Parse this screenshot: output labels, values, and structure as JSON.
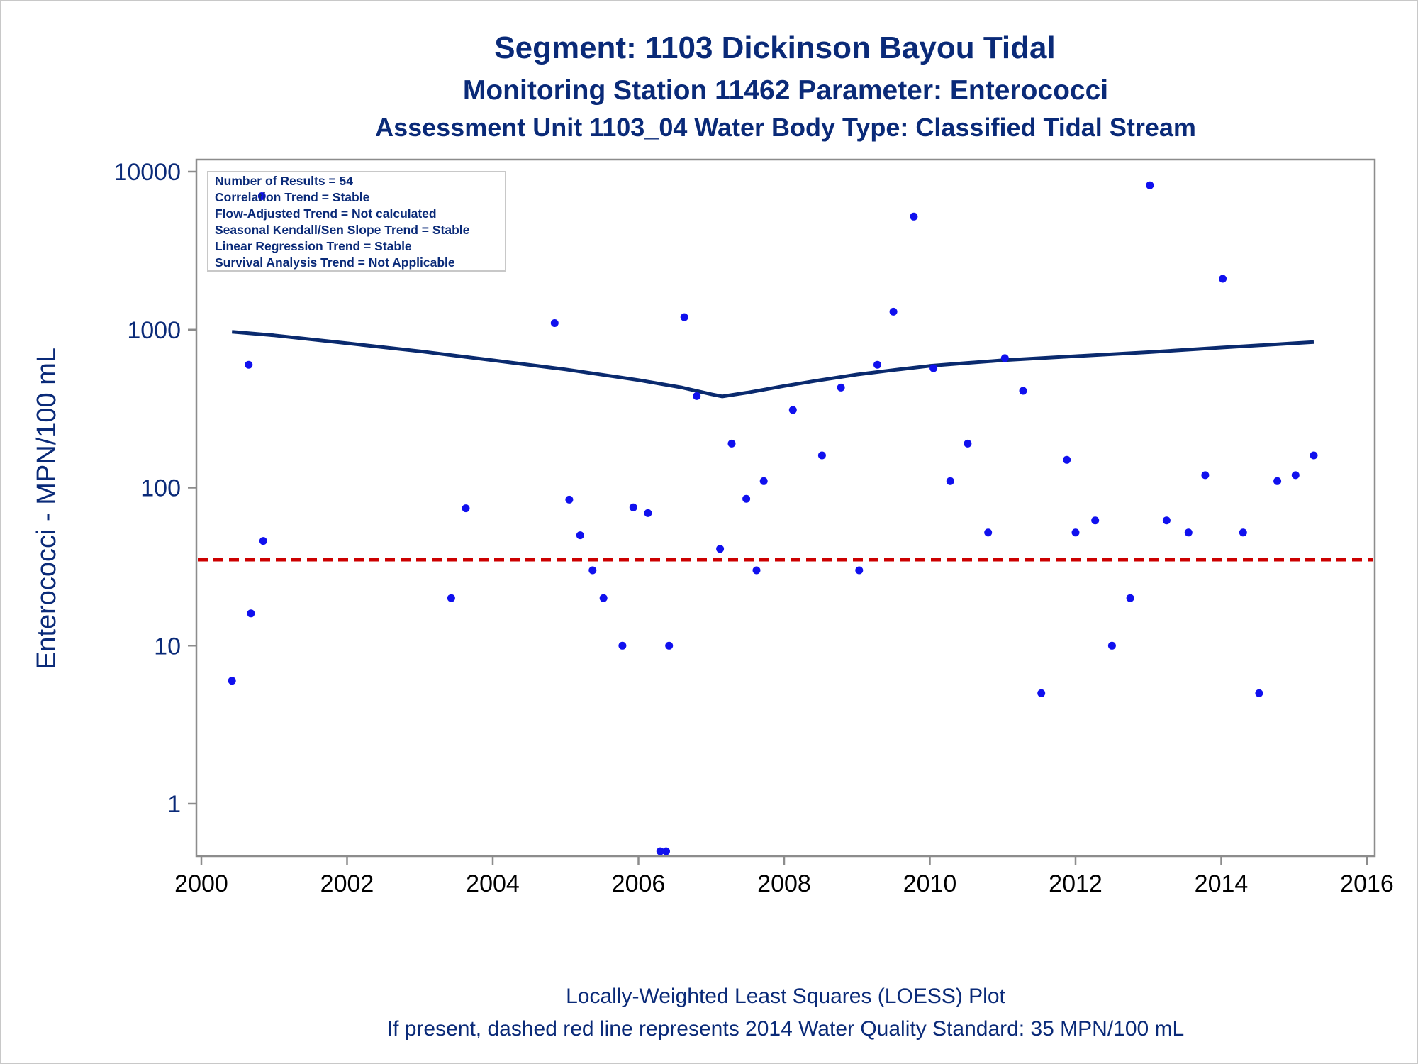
{
  "chart_data": {
    "type": "scatter",
    "title": "Segment: 1103  Dickinson Bayou Tidal",
    "subtitle": "Monitoring Station 11462 Parameter: Enterococci",
    "subtitle2": "Assessment Unit 1103_04   Water Body Type: Classified Tidal Stream",
    "xlabel": "",
    "ylabel": "Enterococci - MPN/100 mL",
    "xlim": [
      2000,
      2016
    ],
    "ylim": [
      0.45,
      12500
    ],
    "yscale": "log",
    "x_ticks": [
      "2000",
      "2002",
      "2004",
      "2006",
      "2008",
      "2010",
      "2012",
      "2014",
      "2016"
    ],
    "y_ticks": [
      "1",
      "10",
      "100",
      "1000",
      "10000"
    ],
    "grid": false,
    "stats_box": [
      "Number of Results = 54",
      "Correlation Trend = Stable",
      "Flow-Adjusted Trend = Not calculated",
      "Seasonal Kendall/Sen Slope Trend = Stable",
      "Linear Regression Trend = Stable",
      "Survival Analysis Trend = Not Applicable"
    ],
    "footnote1": "Locally-Weighted Least Squares (LOESS) Plot",
    "footnote2": "If present, dashed red line represents 2014 Water Quality Standard: 35 MPN/100 mL",
    "standard": {
      "value": 35,
      "color": "#cc0000"
    },
    "points": {
      "color": "#1010ee",
      "x": [
        2000.42,
        2000.65,
        2000.68,
        2000.83,
        2000.85,
        2003.43,
        2003.63,
        2004.85,
        2005.05,
        2005.2,
        2005.37,
        2005.52,
        2005.78,
        2005.93,
        2006.13,
        2006.3,
        2006.38,
        2006.42,
        2006.63,
        2006.8,
        2007.12,
        2007.28,
        2007.48,
        2007.62,
        2007.72,
        2008.12,
        2008.52,
        2008.78,
        2009.03,
        2009.28,
        2009.5,
        2009.78,
        2010.05,
        2010.28,
        2010.52,
        2010.8,
        2011.03,
        2011.28,
        2011.53,
        2011.88,
        2012.0,
        2012.27,
        2012.5,
        2012.75,
        2013.02,
        2013.25,
        2013.55,
        2013.78,
        2014.02,
        2014.3,
        2014.52,
        2014.77,
        2015.02,
        2015.27
      ],
      "y": [
        6,
        600,
        16,
        7000,
        46,
        20,
        74,
        1100,
        84,
        50,
        30,
        20,
        10,
        75,
        69,
        0.5,
        0.5,
        10,
        1200,
        380,
        41,
        190,
        85,
        30,
        110,
        310,
        160,
        430,
        30,
        600,
        1300,
        5200,
        570,
        110,
        190,
        52,
        660,
        410,
        5,
        150,
        52,
        62,
        10,
        20,
        8200,
        62,
        52,
        120,
        2100,
        52,
        5,
        110,
        120,
        160
      ]
    },
    "loess": {
      "color": "#0a2a6e",
      "x": [
        2000.42,
        2001.0,
        2002.0,
        2003.0,
        2004.0,
        2005.0,
        2006.0,
        2006.6,
        2007.0,
        2007.15,
        2007.5,
        2008.0,
        2008.5,
        2009.0,
        2009.5,
        2010.0,
        2010.5,
        2011.0,
        2012.0,
        2013.0,
        2014.0,
        2015.0,
        2015.27
      ],
      "y": [
        970,
        920,
        820,
        730,
        640,
        560,
        480,
        430,
        390,
        378,
        400,
        440,
        480,
        520,
        555,
        590,
        615,
        640,
        680,
        720,
        770,
        820,
        835
      ]
    }
  }
}
